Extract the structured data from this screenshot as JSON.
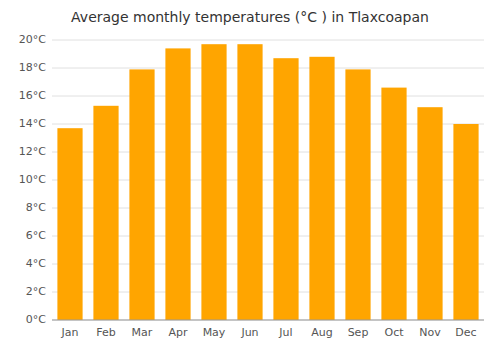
{
  "chart_data": {
    "type": "bar",
    "title": "Average monthly temperatures (°C ) in Tlaxcoapan",
    "categories": [
      "Jan",
      "Feb",
      "Mar",
      "Apr",
      "May",
      "Jun",
      "Jul",
      "Aug",
      "Sep",
      "Oct",
      "Nov",
      "Dec"
    ],
    "values": [
      13.7,
      15.3,
      17.9,
      19.4,
      19.7,
      19.7,
      18.7,
      18.8,
      17.9,
      16.6,
      15.2,
      14.0
    ],
    "color": "#FFA500",
    "ylim": [
      0,
      20
    ],
    "yticks": [
      {
        "value": 0,
        "label": "0°C"
      },
      {
        "value": 2,
        "label": "2°C"
      },
      {
        "value": 4,
        "label": "4°C"
      },
      {
        "value": 6,
        "label": "6°C"
      },
      {
        "value": 8,
        "label": "8°C"
      },
      {
        "value": 10,
        "label": "10°C"
      },
      {
        "value": 12,
        "label": "12°C"
      },
      {
        "value": 14,
        "label": "14°C"
      },
      {
        "value": 16,
        "label": "16°C"
      },
      {
        "value": 18,
        "label": "18°C"
      },
      {
        "value": 20,
        "label": "20°C"
      }
    ],
    "grid": true
  }
}
